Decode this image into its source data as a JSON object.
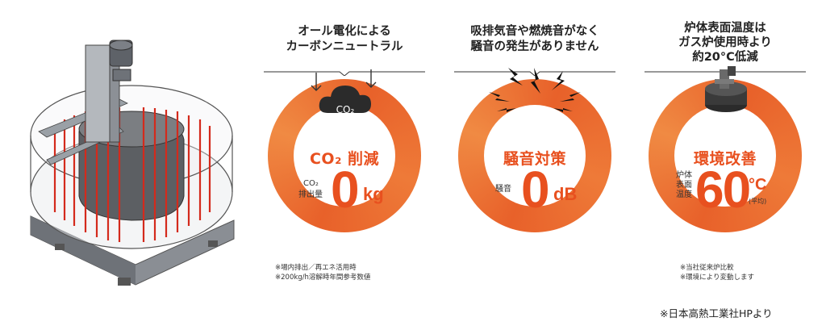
{
  "panels": [
    {
      "heading_lines": [
        "オール電化による",
        "カーボンニュートラル"
      ],
      "icon_label": "CO₂",
      "title": "CO₂ 削減",
      "sublabel_lines": [
        "CO₂",
        "排出量"
      ],
      "value": "0",
      "unit": "kg",
      "notes": [
        "※場内排出／再エネ活用時",
        "※200kg/h溶解時年間参考数値"
      ]
    },
    {
      "heading_lines": [
        "吸排気音や燃焼音がなく",
        "騒音の発生がありません"
      ],
      "title": "騒音対策",
      "sublabel_lines": [
        "騒音"
      ],
      "value": "0",
      "unit": "dB",
      "notes": []
    },
    {
      "heading_lines": [
        "炉体表面温度は",
        "ガス炉使用時より",
        "約20°C低減"
      ],
      "title": "環境改善",
      "sublabel_lines": [
        "炉体",
        "表面",
        "温度"
      ],
      "value": "60",
      "unit": "°C",
      "unit_note": "(平均)",
      "notes": [
        "※当社従来炉比較",
        "※環境により変動します"
      ]
    }
  ],
  "credit": "※日本高熱工業社HPより",
  "colors": {
    "accent": "#e8501f",
    "ring": "#e8612a",
    "heater_rods": "#d42a1c"
  }
}
